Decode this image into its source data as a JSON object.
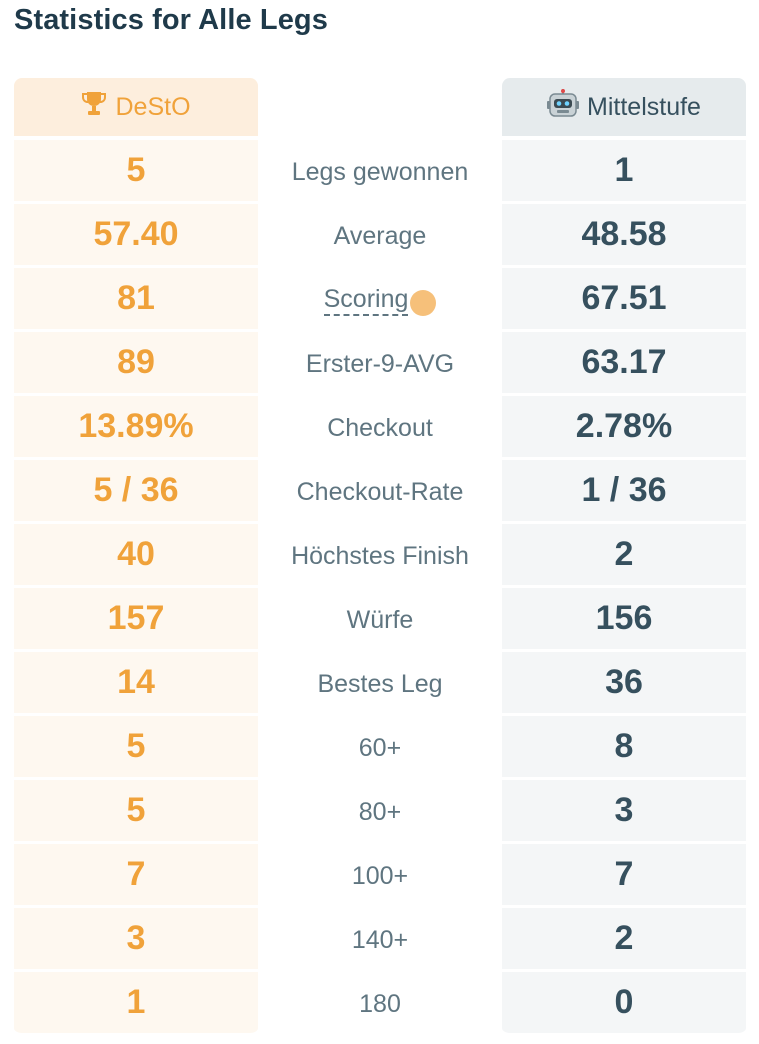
{
  "page": {
    "title": "Statistics for Alle Legs"
  },
  "players": {
    "left": {
      "name": "DeStO",
      "icon": "trophy-icon"
    },
    "right": {
      "name": "Mittelstufe",
      "icon": "robot-icon"
    }
  },
  "colors": {
    "left_accent": "#f0a23a",
    "right_text": "#36505e",
    "label_text": "#5f7580"
  },
  "stats": [
    {
      "label": "Legs gewonnen",
      "left": "5",
      "right": "1"
    },
    {
      "label": "Average",
      "left": "57.40",
      "right": "48.58"
    },
    {
      "label": "Scoring",
      "left": "81",
      "right": "67.51"
    },
    {
      "label": "Erster-9-AVG",
      "left": "89",
      "right": "63.17"
    },
    {
      "label": "Checkout",
      "left": "13.89%",
      "right": "2.78%"
    },
    {
      "label": "Checkout-Rate",
      "left": "5 / 36",
      "right": "1 / 36"
    },
    {
      "label": "Höchstes Finish",
      "left": "40",
      "right": "2"
    },
    {
      "label": "Würfe",
      "left": "157",
      "right": "156"
    },
    {
      "label": "Bestes Leg",
      "left": "14",
      "right": "36"
    },
    {
      "label": "60+",
      "left": "5",
      "right": "8"
    },
    {
      "label": "80+",
      "left": "5",
      "right": "3"
    },
    {
      "label": "100+",
      "left": "7",
      "right": "7"
    },
    {
      "label": "140+",
      "left": "3",
      "right": "2"
    },
    {
      "label": "180",
      "left": "1",
      "right": "0"
    }
  ]
}
